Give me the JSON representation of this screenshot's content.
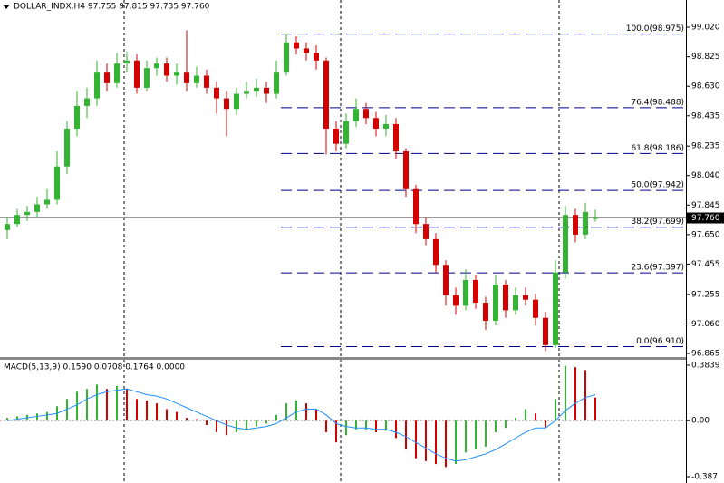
{
  "chart_data": {
    "type": "candlestick",
    "header": "DOLLAR_INDX,H4  97.755 97.815 97.735 97.760",
    "ylim": [
      96.847,
      99.2
    ],
    "yticks": [
      {
        "value": 99.02,
        "label": "99.020"
      },
      {
        "value": 98.825,
        "label": "98.825"
      },
      {
        "value": 98.63,
        "label": "98.630"
      },
      {
        "value": 98.435,
        "label": "98.435"
      },
      {
        "value": 98.235,
        "label": "98.235"
      },
      {
        "value": 98.04,
        "label": "98.040"
      },
      {
        "value": 97.845,
        "label": "97.845"
      },
      {
        "value": 97.65,
        "label": "97.650"
      },
      {
        "value": 97.455,
        "label": "97.455"
      },
      {
        "value": 97.255,
        "label": "97.255"
      },
      {
        "value": 97.06,
        "label": "97.060"
      },
      {
        "value": 96.865,
        "label": "96.865"
      }
    ],
    "last_price": {
      "value": 97.76,
      "label": "97.760"
    },
    "up_color": "#33b533",
    "down_color": "#d40000",
    "candles": [
      [
        97.68,
        97.76,
        97.62,
        97.72
      ],
      [
        97.72,
        97.82,
        97.7,
        97.78
      ],
      [
        97.78,
        97.84,
        97.74,
        97.8
      ],
      [
        97.8,
        97.9,
        97.76,
        97.85
      ],
      [
        97.85,
        97.95,
        97.82,
        97.88
      ],
      [
        97.88,
        98.2,
        97.85,
        98.1
      ],
      [
        98.1,
        98.4,
        98.05,
        98.35
      ],
      [
        98.35,
        98.6,
        98.3,
        98.5
      ],
      [
        98.5,
        98.62,
        98.42,
        98.55
      ],
      [
        98.55,
        98.8,
        98.5,
        98.72
      ],
      [
        98.72,
        98.78,
        98.6,
        98.65
      ],
      [
        98.65,
        98.85,
        98.62,
        98.78
      ],
      [
        98.78,
        98.86,
        98.72,
        98.8
      ],
      [
        98.8,
        98.84,
        98.58,
        98.62
      ],
      [
        98.62,
        98.8,
        98.6,
        98.75
      ],
      [
        98.75,
        98.82,
        98.7,
        98.78
      ],
      [
        98.78,
        98.82,
        98.66,
        98.7
      ],
      [
        98.7,
        98.78,
        98.64,
        98.72
      ],
      [
        98.72,
        99.0,
        98.6,
        98.65
      ],
      [
        98.65,
        98.76,
        98.62,
        98.7
      ],
      [
        98.7,
        98.74,
        98.58,
        98.62
      ],
      [
        98.62,
        98.66,
        98.45,
        98.55
      ],
      [
        98.55,
        98.6,
        98.3,
        98.48
      ],
      [
        98.48,
        98.62,
        98.44,
        98.58
      ],
      [
        98.58,
        98.66,
        98.55,
        98.6
      ],
      [
        98.6,
        98.68,
        98.56,
        98.62
      ],
      [
        98.62,
        98.66,
        98.52,
        98.58
      ],
      [
        98.58,
        98.8,
        98.55,
        98.72
      ],
      [
        98.72,
        98.98,
        98.7,
        98.92
      ],
      [
        98.92,
        98.96,
        98.84,
        98.88
      ],
      [
        98.88,
        98.92,
        98.8,
        98.85
      ],
      [
        98.85,
        98.9,
        98.74,
        98.8
      ],
      [
        98.8,
        98.82,
        98.18,
        98.35
      ],
      [
        98.35,
        98.4,
        98.2,
        98.25
      ],
      [
        98.25,
        98.45,
        98.22,
        98.4
      ],
      [
        98.4,
        98.55,
        98.36,
        98.48
      ],
      [
        98.48,
        98.52,
        98.38,
        98.42
      ],
      [
        98.42,
        98.46,
        98.3,
        98.35
      ],
      [
        98.35,
        98.44,
        98.3,
        98.38
      ],
      [
        98.38,
        98.42,
        98.15,
        98.2
      ],
      [
        98.2,
        98.22,
        97.9,
        97.95
      ],
      [
        97.95,
        97.98,
        97.66,
        97.72
      ],
      [
        97.72,
        97.76,
        97.58,
        97.62
      ],
      [
        97.62,
        97.66,
        97.4,
        97.45
      ],
      [
        97.45,
        97.48,
        97.18,
        97.25
      ],
      [
        97.25,
        97.3,
        97.12,
        97.18
      ],
      [
        97.18,
        97.42,
        97.15,
        97.35
      ],
      [
        97.35,
        97.38,
        97.16,
        97.2
      ],
      [
        97.2,
        97.24,
        97.02,
        97.08
      ],
      [
        97.08,
        97.38,
        97.05,
        97.32
      ],
      [
        97.32,
        97.35,
        97.1,
        97.15
      ],
      [
        97.15,
        97.3,
        97.12,
        97.25
      ],
      [
        97.25,
        97.3,
        97.18,
        97.22
      ],
      [
        97.22,
        97.26,
        97.05,
        97.1
      ],
      [
        97.1,
        97.14,
        96.88,
        96.92
      ],
      [
        96.92,
        97.48,
        96.9,
        97.4
      ],
      [
        97.4,
        97.84,
        97.36,
        97.78
      ],
      [
        97.78,
        97.82,
        97.6,
        97.65
      ],
      [
        97.65,
        97.86,
        97.62,
        97.8
      ],
      [
        97.755,
        97.815,
        97.735,
        97.76
      ]
    ],
    "fib_color": "#00008b",
    "fib_levels": [
      {
        "label": "100.0(98.975)",
        "price": 98.975
      },
      {
        "label": "76.4(98.488)",
        "price": 98.488
      },
      {
        "label": "61.8(98.186)",
        "price": 98.186
      },
      {
        "label": "50.0(97.942)",
        "price": 97.942
      },
      {
        "label": "38.2(97.699)",
        "price": 97.699
      },
      {
        "label": "23.6(97.397)",
        "price": 97.397
      },
      {
        "label": "0.0(96.910)",
        "price": 96.91
      }
    ],
    "macd": {
      "title": "MACD(5,13,9) 0.1590 0.0708 0.1764 0.0000",
      "ylim": [
        -0.431,
        0.415
      ],
      "yticks": [
        0.3839,
        {
          "value": 0,
          "label": "0.00"
        },
        -0.387
      ],
      "histogram": [
        0.02,
        0.03,
        0.04,
        0.05,
        0.06,
        0.1,
        0.15,
        0.2,
        0.22,
        0.25,
        0.22,
        0.24,
        0.22,
        0.15,
        0.14,
        0.12,
        0.08,
        0.06,
        0.02,
        0.01,
        -0.03,
        -0.08,
        -0.1,
        -0.08,
        -0.06,
        -0.04,
        -0.02,
        0.04,
        0.12,
        0.14,
        0.12,
        0.08,
        -0.08,
        -0.15,
        -0.1,
        -0.06,
        -0.06,
        -0.08,
        -0.07,
        -0.12,
        -0.2,
        -0.26,
        -0.28,
        -0.3,
        -0.32,
        -0.3,
        -0.22,
        -0.2,
        -0.18,
        -0.08,
        -0.05,
        0.02,
        0.08,
        0.05,
        -0.05,
        0.15,
        0.38,
        0.37,
        0.35,
        0.16
      ],
      "signal_color": "#1e90ff",
      "signal": [
        0.0,
        0.01,
        0.02,
        0.03,
        0.04,
        0.05,
        0.08,
        0.11,
        0.15,
        0.18,
        0.2,
        0.21,
        0.22,
        0.2,
        0.18,
        0.17,
        0.15,
        0.12,
        0.09,
        0.06,
        0.03,
        0.0,
        -0.03,
        -0.05,
        -0.06,
        -0.05,
        -0.04,
        -0.02,
        0.02,
        0.06,
        0.08,
        0.08,
        0.04,
        -0.02,
        -0.04,
        -0.05,
        -0.05,
        -0.06,
        -0.06,
        -0.08,
        -0.11,
        -0.15,
        -0.19,
        -0.23,
        -0.26,
        -0.28,
        -0.27,
        -0.25,
        -0.23,
        -0.2,
        -0.16,
        -0.12,
        -0.08,
        -0.05,
        -0.05,
        0.0,
        0.07,
        0.12,
        0.16,
        0.18
      ]
    }
  }
}
